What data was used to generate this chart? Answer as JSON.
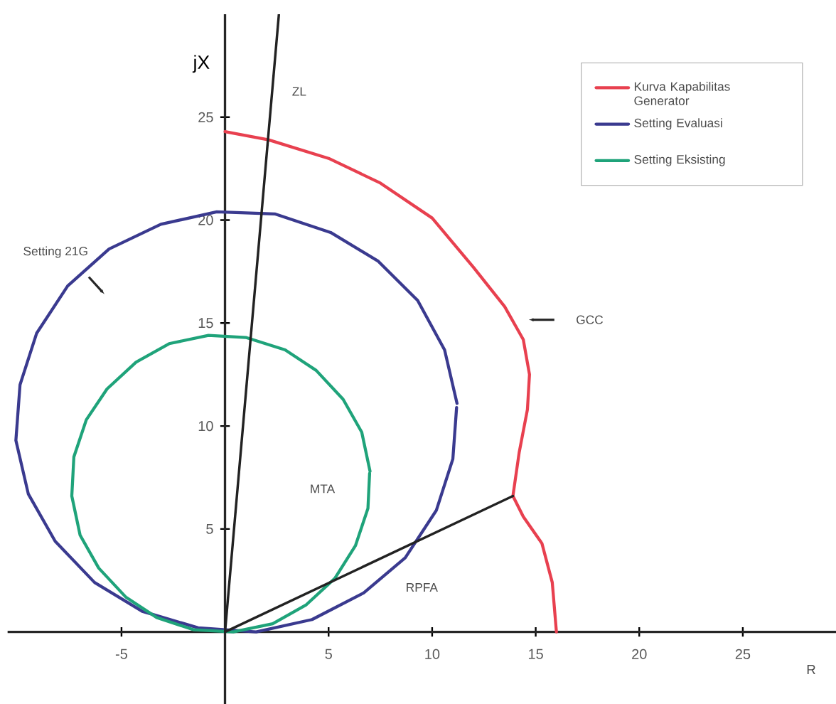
{
  "chart_data": {
    "type": "line",
    "xlabel": "R",
    "ylabel": "jX",
    "xlim": [
      -10.5,
      29.5
    ],
    "ylim": [
      -3.5,
      30
    ],
    "xticks": [
      -5,
      5,
      10,
      15,
      20,
      25
    ],
    "yticks": [
      5,
      10,
      15,
      20,
      25
    ],
    "legend": "top right",
    "marker": "none",
    "line_style": "solid",
    "series": [
      {
        "name": "Kurva Kapabilitas Generator",
        "color": "#e8404f",
        "x": [
          0,
          2.1,
          5.0,
          7.5,
          10.0,
          12.0,
          13.5,
          14.4,
          14.7,
          14.6,
          14.2,
          13.9,
          14.4,
          15.3,
          15.8,
          16.0
        ],
        "values": [
          24.3,
          23.9,
          23.0,
          21.8,
          20.1,
          17.7,
          15.8,
          14.2,
          12.5,
          10.8,
          8.7,
          6.6,
          5.6,
          4.3,
          2.4,
          0
        ]
      },
      {
        "name": "Setting Evaluasi",
        "color": "#3a3a8f",
        "x": [
          11.2,
          10.6,
          9.3,
          7.4,
          5.1,
          2.4,
          -0.4,
          -3.1,
          -5.6,
          -7.6,
          -9.1,
          -9.9,
          -10.1,
          -9.5,
          -8.2,
          -6.3,
          -4.0,
          -1.3,
          1.5,
          4.2,
          6.7,
          8.7,
          10.2,
          11.0,
          11.18
        ],
        "values": [
          11.1,
          13.7,
          16.1,
          18.0,
          19.4,
          20.3,
          20.4,
          19.8,
          18.6,
          16.8,
          14.5,
          12.0,
          9.3,
          6.7,
          4.4,
          2.4,
          1.0,
          0.2,
          0.0,
          0.6,
          1.9,
          3.6,
          5.9,
          8.4,
          10.9
        ]
      },
      {
        "name": "Setting Eksisting",
        "color": "#1fa37a",
        "x": [
          7.0,
          6.6,
          5.7,
          4.4,
          2.9,
          1.0,
          -0.8,
          -2.7,
          -4.3,
          -5.7,
          -6.7,
          -7.3,
          -7.4,
          -7.0,
          -6.1,
          -4.8,
          -3.3,
          -1.5,
          0.4,
          2.3,
          3.9,
          5.3,
          6.3,
          6.9,
          6.98
        ],
        "values": [
          7.8,
          9.7,
          11.3,
          12.7,
          13.7,
          14.3,
          14.4,
          14.0,
          13.1,
          11.8,
          10.3,
          8.5,
          6.6,
          4.7,
          3.1,
          1.7,
          0.7,
          0.1,
          0.0,
          0.4,
          1.3,
          2.6,
          4.2,
          6.0,
          7.7
        ]
      },
      {
        "color": "#222222",
        "type": "line",
        "x": [
          0,
          2.6
        ],
        "values": [
          0,
          30
        ]
      },
      {
        "color": "#222222",
        "type": "line",
        "x": [
          0,
          13.9
        ],
        "values": [
          0,
          6.6
        ]
      }
    ],
    "annotations": [
      "ZL",
      "Setting 21G",
      "GCC",
      "MTA",
      "RPFA"
    ]
  }
}
